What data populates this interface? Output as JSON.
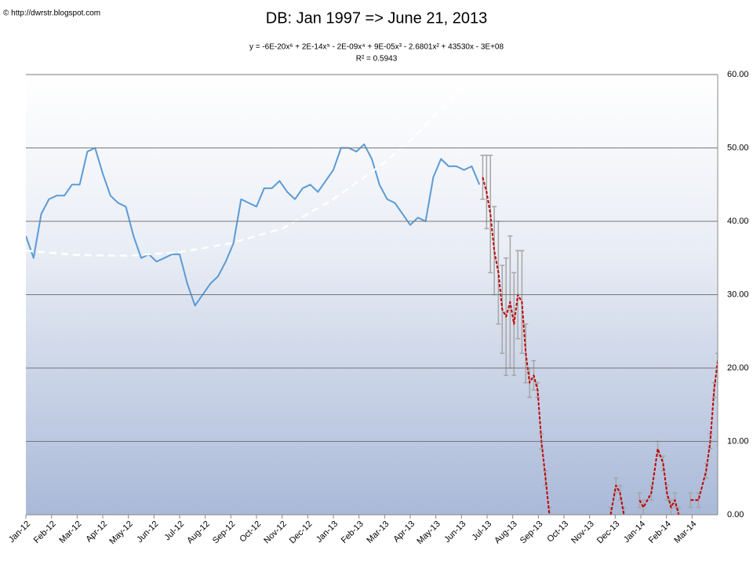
{
  "chart_data": {
    "type": "line",
    "title": "DB: Jan 1997 => June 21, 2013",
    "subtitle": "y = -6E-20x⁶ + 2E-14x⁵ - 2E-09x⁴ + 9E-05x³ - 2.6801x² + 43530x - 3E+08",
    "annotation": "R² = 0.5943",
    "source": "© http://dwrstr.blogspot.com",
    "xlim": [
      0,
      27
    ],
    "xticks": [
      {
        "value": 0,
        "label": "Jan-12"
      },
      {
        "value": 1,
        "label": "Feb-12"
      },
      {
        "value": 2,
        "label": "Mar-12"
      },
      {
        "value": 3,
        "label": "Apr-12"
      },
      {
        "value": 4,
        "label": "May-12"
      },
      {
        "value": 5,
        "label": "Jun-12"
      },
      {
        "value": 6,
        "label": "Jul-12"
      },
      {
        "value": 7,
        "label": "Aug-12"
      },
      {
        "value": 8,
        "label": "Sep-12"
      },
      {
        "value": 9,
        "label": "Oct-12"
      },
      {
        "value": 10,
        "label": "Nov-12"
      },
      {
        "value": 11,
        "label": "Dec-12"
      },
      {
        "value": 12,
        "label": "Jan-13"
      },
      {
        "value": 13,
        "label": "Feb-13"
      },
      {
        "value": 14,
        "label": "Mar-13"
      },
      {
        "value": 15,
        "label": "Apr-13"
      },
      {
        "value": 16,
        "label": "May-13"
      },
      {
        "value": 17,
        "label": "Jun-13"
      },
      {
        "value": 18,
        "label": "Jul-13"
      },
      {
        "value": 19,
        "label": "Aug-13"
      },
      {
        "value": 20,
        "label": "Sep-13"
      },
      {
        "value": 21,
        "label": "Oct-13"
      },
      {
        "value": 22,
        "label": "Nov-13"
      },
      {
        "value": 23,
        "label": "Dec-13"
      },
      {
        "value": 24,
        "label": "Jan-14"
      },
      {
        "value": 25,
        "label": "Feb-14"
      },
      {
        "value": 26,
        "label": "Mar-14"
      }
    ],
    "ylim": [
      0,
      60
    ],
    "yticks": [
      {
        "value": 0,
        "label": "0.00"
      },
      {
        "value": 10,
        "label": "10.00"
      },
      {
        "value": 20,
        "label": "20.00"
      },
      {
        "value": 30,
        "label": "30.00"
      },
      {
        "value": 40,
        "label": "40.00"
      },
      {
        "value": 50,
        "label": "50.00"
      },
      {
        "value": 60,
        "label": "60.00"
      }
    ],
    "grid": true,
    "series": [
      {
        "color": "#5b9bd5",
        "style": "solid",
        "x": [
          0,
          0.3,
          0.6,
          0.9,
          1.2,
          1.5,
          1.8,
          2.1,
          2.4,
          2.7,
          3,
          3.3,
          3.6,
          3.9,
          4.2,
          4.5,
          4.8,
          5.1,
          5.4,
          5.7,
          6,
          6.3,
          6.6,
          6.9,
          7.2,
          7.5,
          7.8,
          8.1,
          8.4,
          8.7,
          9,
          9.3,
          9.6,
          9.9,
          10.2,
          10.5,
          10.8,
          11.1,
          11.4,
          11.7,
          12,
          12.3,
          12.6,
          12.9,
          13.2,
          13.5,
          13.8,
          14.1,
          14.4,
          14.7,
          15,
          15.3,
          15.6,
          15.9,
          16.2,
          16.5,
          16.8,
          17.1,
          17.4,
          17.7
        ],
        "values": [
          38,
          35,
          41,
          43,
          43.5,
          43.5,
          45,
          45,
          49.5,
          50,
          46.5,
          43.5,
          42.5,
          42,
          38,
          35,
          35.5,
          34.5,
          35,
          35.5,
          35.5,
          31.5,
          28.5,
          30,
          31.5,
          32.5,
          34.5,
          37,
          43,
          42.5,
          42,
          44.5,
          44.5,
          45.5,
          44,
          43,
          44.5,
          45,
          44,
          45.5,
          47,
          50,
          50,
          49.5,
          50.5,
          48.5,
          45,
          43,
          42.5,
          41,
          39.5,
          40.5,
          40,
          46,
          48.5,
          47.5,
          47.5,
          47,
          47.5,
          45
        ]
      },
      {
        "color": "#ffffff",
        "style": "trend",
        "x": [
          0,
          2,
          4,
          6,
          8,
          10,
          12,
          13,
          14,
          15,
          16,
          17,
          17.4
        ],
        "values": [
          36,
          35.4,
          35.3,
          35.8,
          37,
          39,
          43,
          45.5,
          48,
          51,
          54.5,
          58,
          60
        ]
      },
      {
        "color": "#c00000",
        "style": "projection",
        "error_color": "#a6a6a6",
        "x": [
          17.83,
          17.98,
          18.13,
          18.28,
          18.44,
          18.59,
          18.74,
          18.9,
          19.05,
          19.2,
          19.36,
          19.51,
          19.66,
          19.82,
          19.97,
          20.12,
          20.28,
          20.43,
          21.65,
          22.82,
          23.03,
          23.19,
          23.34,
          23.64,
          23.95,
          24.1,
          24.41,
          24.66,
          24.87,
          25.02,
          25.18,
          25.33,
          25.48,
          25.7,
          25.94,
          26.25,
          26.55,
          26.71,
          26.86,
          27
        ],
        "values": [
          46,
          44,
          41,
          36,
          33,
          28,
          27,
          29,
          26,
          30,
          29,
          22,
          18,
          19,
          17,
          10,
          5,
          0,
          null,
          0,
          4,
          3,
          0,
          null,
          2,
          1,
          3,
          9,
          7,
          3,
          1,
          2,
          0,
          null,
          2,
          2,
          6,
          10,
          17,
          21
        ],
        "errors": [
          3,
          5,
          8,
          6,
          7,
          6,
          8,
          9,
          7,
          6,
          7,
          4,
          2,
          2,
          1,
          1,
          1,
          1,
          null,
          1,
          1,
          1,
          1,
          null,
          1,
          1,
          1,
          1,
          1,
          1,
          1,
          1,
          1,
          null,
          1,
          1,
          1,
          1,
          1,
          1
        ]
      }
    ]
  }
}
